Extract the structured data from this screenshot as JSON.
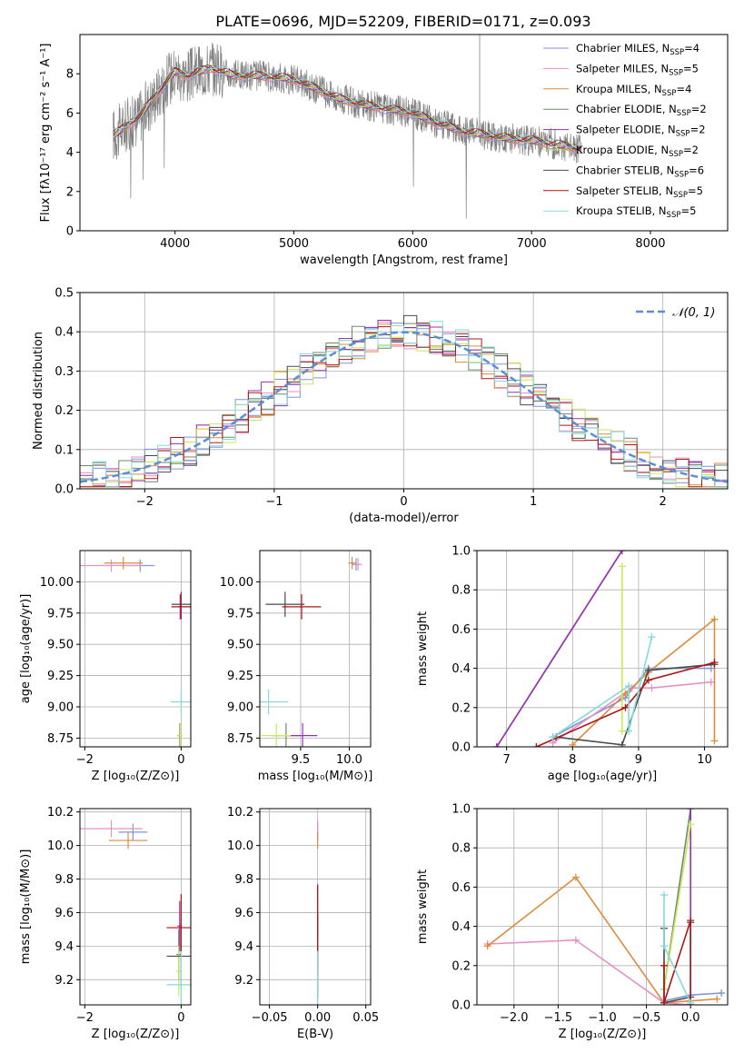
{
  "figure": {
    "title": "PLATE=0696, MJD=52209, FIBERID=0171, z=0.093"
  },
  "colors": {
    "Chabrier MILES": "#7f95d8",
    "Salpeter MILES": "#e78fc7",
    "Kroupa MILES": "#e08a3c",
    "Chabrier ELODIE": "#6a8b6a",
    "Salpeter ELODIE": "#9b2fb4",
    "Kroupa ELODIE": "#c9e85a",
    "Chabrier STELIB": "#4b4b4b",
    "Salpeter STELIB": "#b01515",
    "Kroupa STELIB": "#86dada",
    "data": "#808080",
    "normal": "#5b8ed6",
    "grid": "#b0b0b0"
  },
  "legend_spectrum": [
    {
      "name": "Chabrier MILES",
      "label": "Chabrier MILES, N",
      "sub": "SSP",
      "tail": "=4"
    },
    {
      "name": "Salpeter MILES",
      "label": "Salpeter MILES, N",
      "sub": "SSP",
      "tail": "=5"
    },
    {
      "name": "Kroupa MILES",
      "label": "Kroupa MILES, N",
      "sub": "SSP",
      "tail": "=4"
    },
    {
      "name": "Chabrier ELODIE",
      "label": "Chabrier ELODIE, N",
      "sub": "SSP",
      "tail": "=2"
    },
    {
      "name": "Salpeter ELODIE",
      "label": "Salpeter ELODIE, N",
      "sub": "SSP",
      "tail": "=2"
    },
    {
      "name": "Kroupa ELODIE",
      "label": "Kroupa ELODIE, N",
      "sub": "SSP",
      "tail": "=2"
    },
    {
      "name": "Chabrier STELIB",
      "label": "Chabrier STELIB, N",
      "sub": "SSP",
      "tail": "=6"
    },
    {
      "name": "Salpeter STELIB",
      "label": "Salpeter STELIB, N",
      "sub": "SSP",
      "tail": "=5"
    },
    {
      "name": "Kroupa STELIB",
      "label": "Kroupa STELIB, N",
      "sub": "SSP",
      "tail": "=5"
    }
  ],
  "chart_data": [
    {
      "id": "spectrum",
      "type": "line",
      "xlabel": "wavelength [Angstrom, rest frame]",
      "ylabel": "Flux [fλ10⁻¹⁷ erg cm⁻² s⁻¹ A⁻¹]",
      "xlim": [
        3200,
        8650
      ],
      "ylim": [
        0,
        10
      ],
      "xticks": [
        4000,
        5000,
        6000,
        7000,
        8000
      ],
      "yticks": [
        0,
        2,
        4,
        6,
        8
      ],
      "grid": false,
      "legend": "top-right",
      "continuum": {
        "wavelength": [
          3480,
          3520,
          3600,
          3700,
          3800,
          3900,
          4000,
          4100,
          4300,
          4500,
          4700,
          4900,
          5000,
          5200,
          5400,
          5600,
          5800,
          6000,
          6200,
          6400,
          6600,
          6800,
          7000,
          7200,
          7400
        ],
        "flux": [
          4.9,
          5.0,
          5.4,
          5.8,
          6.6,
          7.4,
          8.1,
          7.9,
          8.3,
          7.9,
          7.9,
          7.8,
          7.7,
          7.2,
          6.7,
          6.4,
          6.2,
          6.0,
          5.5,
          5.1,
          4.9,
          4.7,
          4.6,
          4.4,
          4.2
        ]
      }
    },
    {
      "id": "residuals",
      "type": "step",
      "xlabel": "(data-model)/error",
      "ylabel": "Normed distribution",
      "xlim": [
        -2.5,
        2.5
      ],
      "ylim": [
        0,
        0.5
      ],
      "xticks": [
        -2,
        -1,
        0,
        1,
        2
      ],
      "yticks": [
        0.0,
        0.1,
        0.2,
        0.3,
        0.4,
        0.5
      ],
      "grid": true,
      "legend": "top-right",
      "normal_label": "𝒩(0, 1)"
    },
    {
      "id": "age-vs-Z",
      "type": "scatter",
      "xlabel": "Z [log₁₀(Z/Z⊙)]",
      "ylabel": "age  [log₁₀(age/yr)]",
      "xlim": [
        -2.1,
        0.2
      ],
      "ylim": [
        8.68,
        10.25
      ],
      "xticks": [
        -2,
        0
      ],
      "yticks": [
        8.75,
        9.0,
        9.25,
        9.5,
        9.75,
        10.0
      ],
      "grid": true,
      "points": [
        {
          "series": "Chabrier MILES",
          "x": -0.85,
          "y": 10.13,
          "xerr": 0.3,
          "yerr": 0.05
        },
        {
          "series": "Salpeter MILES",
          "x": -1.45,
          "y": 10.13,
          "xerr": 0.65,
          "yerr": 0.05
        },
        {
          "series": "Kroupa MILES",
          "x": -1.2,
          "y": 10.15,
          "xerr": 0.4,
          "yerr": 0.05
        },
        {
          "series": "Chabrier ELODIE",
          "x": -0.03,
          "y": 8.77,
          "xerr": 0.05,
          "yerr": 0.1
        },
        {
          "series": "Salpeter ELODIE",
          "x": -0.02,
          "y": 9.8,
          "xerr": 0.05,
          "yerr": 0.1
        },
        {
          "series": "Kroupa ELODIE",
          "x": -0.02,
          "y": 8.77,
          "xerr": 0.05,
          "yerr": 0.1
        },
        {
          "series": "Chabrier STELIB",
          "x": 0.0,
          "y": 9.82,
          "xerr": 0.2,
          "yerr": 0.1
        },
        {
          "series": "Salpeter STELIB",
          "x": 0.0,
          "y": 9.8,
          "xerr": 0.2,
          "yerr": 0.1
        },
        {
          "series": "Kroupa STELIB",
          "x": 0.0,
          "y": 9.04,
          "xerr": 0.22,
          "yerr": 0.1
        }
      ]
    },
    {
      "id": "age-vs-mass",
      "type": "scatter",
      "xlabel": "mass [log₁₀(M/M⊙)]",
      "ylabel": "",
      "xlim": [
        9.08,
        10.22
      ],
      "ylim": [
        8.68,
        10.25
      ],
      "xticks": [
        9.5,
        10.0
      ],
      "yticks": [
        8.75,
        9.0,
        9.25,
        9.5,
        9.75,
        10.0
      ],
      "grid": true,
      "points": [
        {
          "series": "Chabrier MILES",
          "x": 10.07,
          "y": 10.14,
          "xerr": 0.04,
          "yerr": 0.05
        },
        {
          "series": "Salpeter MILES",
          "x": 10.09,
          "y": 10.14,
          "xerr": 0.04,
          "yerr": 0.05
        },
        {
          "series": "Kroupa MILES",
          "x": 10.03,
          "y": 10.15,
          "xerr": 0.04,
          "yerr": 0.05
        },
        {
          "series": "Chabrier ELODIE",
          "x": 9.35,
          "y": 8.77,
          "xerr": 0.15,
          "yerr": 0.1
        },
        {
          "series": "Salpeter ELODIE",
          "x": 9.52,
          "y": 8.77,
          "xerr": 0.15,
          "yerr": 0.1
        },
        {
          "series": "Kroupa ELODIE",
          "x": 9.25,
          "y": 8.77,
          "xerr": 0.15,
          "yerr": 0.1
        },
        {
          "series": "Chabrier STELIB",
          "x": 9.34,
          "y": 9.82,
          "xerr": 0.2,
          "yerr": 0.1
        },
        {
          "series": "Salpeter STELIB",
          "x": 9.51,
          "y": 9.8,
          "xerr": 0.2,
          "yerr": 0.1
        },
        {
          "series": "Kroupa STELIB",
          "x": 9.17,
          "y": 9.04,
          "xerr": 0.2,
          "yerr": 0.1
        }
      ]
    },
    {
      "id": "weight-vs-age",
      "type": "line",
      "xlabel": "age  [log₁₀(age/yr)]",
      "ylabel": "mass weight",
      "xlim": [
        6.55,
        10.35
      ],
      "ylim": [
        0,
        1
      ],
      "xticks": [
        7,
        8,
        9,
        10
      ],
      "yticks": [
        0.0,
        0.2,
        0.4,
        0.6,
        0.8,
        1.0
      ],
      "grid": true,
      "series": [
        {
          "name": "Chabrier MILES",
          "x": [
            7.7,
            8.8,
            9.15,
            10.1
          ],
          "y": [
            0.05,
            0.25,
            0.4,
            0.4
          ]
        },
        {
          "name": "Salpeter MILES",
          "x": [
            7.7,
            8.9,
            9.2,
            10.1
          ],
          "y": [
            0.02,
            0.3,
            0.3,
            0.33
          ]
        },
        {
          "name": "Kroupa MILES",
          "x": [
            8.0,
            8.8,
            9.15,
            10.15,
            10.15
          ],
          "y": [
            0.01,
            0.27,
            0.38,
            0.65,
            0.03
          ]
        },
        {
          "name": "Chabrier ELODIE",
          "x": [
            6.85,
            8.75
          ],
          "y": [
            0.0,
            1.0
          ]
        },
        {
          "name": "Salpeter ELODIE",
          "x": [
            6.85,
            8.75
          ],
          "y": [
            0.0,
            1.0
          ]
        },
        {
          "name": "Kroupa ELODIE",
          "x": [
            8.75,
            8.75,
            8.85
          ],
          "y": [
            0.92,
            0.08,
            0.08
          ]
        },
        {
          "name": "Chabrier STELIB",
          "x": [
            7.75,
            8.75,
            9.15,
            10.15
          ],
          "y": [
            0.05,
            0.01,
            0.39,
            0.42
          ]
        },
        {
          "name": "Salpeter STELIB",
          "x": [
            7.45,
            8.8,
            9.15,
            10.15
          ],
          "y": [
            0.0,
            0.2,
            0.34,
            0.43
          ]
        },
        {
          "name": "Kroupa STELIB",
          "x": [
            7.7,
            8.85,
            8.85,
            9.2
          ],
          "y": [
            0.05,
            0.31,
            0.08,
            0.56
          ]
        }
      ]
    },
    {
      "id": "mass-vs-Z",
      "type": "scatter",
      "xlabel": "Z [log₁₀(Z/Z⊙)]",
      "ylabel": "mass [log₁₀(M/M⊙)]",
      "xlim": [
        -2.1,
        0.2
      ],
      "ylim": [
        9.05,
        10.22
      ],
      "xticks": [
        -2,
        0
      ],
      "yticks": [
        9.2,
        9.4,
        9.6,
        9.8,
        10.0,
        10.2
      ],
      "grid": true,
      "points": [
        {
          "series": "Chabrier MILES",
          "x": -1.0,
          "y": 10.08,
          "xerr": 0.3,
          "yerr": 0.05
        },
        {
          "series": "Salpeter MILES",
          "x": -1.45,
          "y": 10.1,
          "xerr": 0.65,
          "yerr": 0.05
        },
        {
          "series": "Kroupa MILES",
          "x": -1.1,
          "y": 10.03,
          "xerr": 0.4,
          "yerr": 0.05
        },
        {
          "series": "Chabrier ELODIE",
          "x": -0.05,
          "y": 9.35,
          "xerr": 0.05,
          "yerr": 0.15
        },
        {
          "series": "Salpeter ELODIE",
          "x": -0.03,
          "y": 9.52,
          "xerr": 0.05,
          "yerr": 0.15
        },
        {
          "series": "Kroupa ELODIE",
          "x": -0.05,
          "y": 9.25,
          "xerr": 0.05,
          "yerr": 0.15
        },
        {
          "series": "Chabrier STELIB",
          "x": 0.0,
          "y": 9.34,
          "xerr": 0.3,
          "yerr": 0.2
        },
        {
          "series": "Salpeter STELIB",
          "x": 0.0,
          "y": 9.51,
          "xerr": 0.3,
          "yerr": 0.2
        },
        {
          "series": "Kroupa STELIB",
          "x": 0.0,
          "y": 9.17,
          "xerr": 0.3,
          "yerr": 0.2
        }
      ]
    },
    {
      "id": "mass-vs-ebv",
      "type": "scatter",
      "xlabel": "E(B-V)",
      "ylabel": "",
      "xlim": [
        -0.06,
        0.055
      ],
      "ylim": [
        9.05,
        10.22
      ],
      "xticks": [
        -0.05,
        0.0,
        0.05
      ],
      "yticks": [
        9.2,
        9.4,
        9.6,
        9.8,
        10.0,
        10.2
      ],
      "grid": true,
      "points": [
        {
          "series": "Chabrier MILES",
          "x": 0.0,
          "y": 10.08,
          "xerr": 0,
          "yerr": 0.05
        },
        {
          "series": "Salpeter MILES",
          "x": 0.0,
          "y": 10.1,
          "xerr": 0,
          "yerr": 0.05
        },
        {
          "series": "Kroupa MILES",
          "x": 0.0,
          "y": 10.03,
          "xerr": 0,
          "yerr": 0.05
        },
        {
          "series": "Chabrier ELODIE",
          "x": 0.0,
          "y": 9.35,
          "xerr": 0,
          "yerr": 0.25
        },
        {
          "series": "Salpeter ELODIE",
          "x": 0.0,
          "y": 9.52,
          "xerr": 0,
          "yerr": 0.25
        },
        {
          "series": "Kroupa ELODIE",
          "x": 0.0,
          "y": 9.25,
          "xerr": 0,
          "yerr": 0.2
        },
        {
          "series": "Chabrier STELIB",
          "x": 0.0,
          "y": 9.34,
          "xerr": 0,
          "yerr": 0.25
        },
        {
          "series": "Salpeter STELIB",
          "x": 0.0,
          "y": 9.51,
          "xerr": 0,
          "yerr": 0.25
        },
        {
          "series": "Kroupa STELIB",
          "x": 0.0,
          "y": 9.17,
          "xerr": 0,
          "yerr": 0.2
        }
      ]
    },
    {
      "id": "weight-vs-Z",
      "type": "line",
      "xlabel": "Z [log₁₀(Z/Z⊙)]",
      "ylabel": "mass weight",
      "xlim": [
        -2.42,
        0.42
      ],
      "ylim": [
        0,
        1
      ],
      "xticks": [
        -2.0,
        -1.5,
        -1.0,
        -0.5,
        0.0
      ],
      "yticks": [
        0.0,
        0.2,
        0.4,
        0.6,
        0.8,
        1.0
      ],
      "grid": true,
      "series": [
        {
          "name": "Chabrier MILES",
          "x": [
            -0.3,
            0.0,
            0.35
          ],
          "y": [
            0.02,
            0.05,
            0.06
          ]
        },
        {
          "name": "Salpeter MILES",
          "x": [
            -2.3,
            -1.3,
            -0.3,
            0.0
          ],
          "y": [
            0.31,
            0.33,
            0.01,
            0.0
          ]
        },
        {
          "name": "Kroupa MILES",
          "x": [
            -2.3,
            -1.3,
            -0.3,
            0.3
          ],
          "y": [
            0.3,
            0.65,
            0.01,
            0.03
          ]
        },
        {
          "name": "Chabrier ELODIE",
          "x": [
            -0.3,
            0.0
          ],
          "y": [
            0.08,
            1.0
          ]
        },
        {
          "name": "Salpeter ELODIE",
          "x": [
            0.0,
            0.0
          ],
          "y": [
            0.0,
            1.0
          ]
        },
        {
          "name": "Kroupa ELODIE",
          "x": [
            -0.3,
            0.0
          ],
          "y": [
            0.08,
            0.92
          ]
        },
        {
          "name": "Chabrier STELIB",
          "x": [
            -0.3,
            -0.3,
            0.0,
            0.0
          ],
          "y": [
            0.39,
            0.01,
            0.04,
            0.42
          ]
        },
        {
          "name": "Salpeter STELIB",
          "x": [
            -0.3,
            -0.3,
            0.0,
            0.0
          ],
          "y": [
            0.2,
            0.01,
            0.43,
            0.0
          ]
        },
        {
          "name": "Kroupa STELIB",
          "x": [
            -0.3,
            -0.3,
            0.0
          ],
          "y": [
            0.56,
            0.3,
            0.01
          ]
        }
      ]
    }
  ]
}
